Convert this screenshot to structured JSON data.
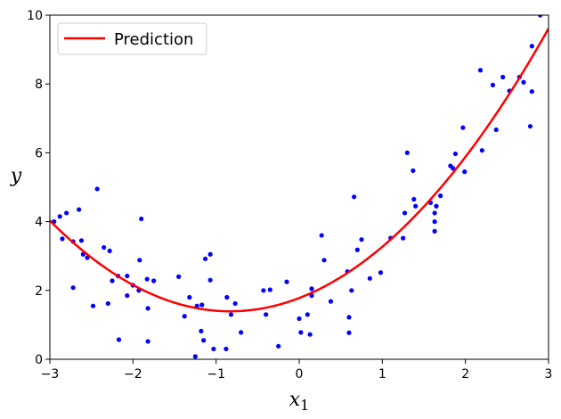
{
  "chart_data": {
    "type": "scatter",
    "title": "",
    "xlabel": "x",
    "xlabel_subscript": "1",
    "ylabel": "y",
    "xlim": [
      -3,
      3
    ],
    "ylim": [
      0,
      10
    ],
    "xticks": [
      -3,
      -2,
      -1,
      0,
      1,
      2,
      3
    ],
    "xtick_labels": [
      "−3",
      "−2",
      "−1",
      "0",
      "1",
      "2",
      "3"
    ],
    "yticks": [
      0,
      2,
      4,
      6,
      8,
      10
    ],
    "ytick_labels": [
      "0",
      "2",
      "4",
      "6",
      "8",
      "10"
    ],
    "grid": false,
    "legend_position": "top-left",
    "series": [
      {
        "kind": "scatter",
        "color": "#0000ff",
        "points": [
          [
            -2.95,
            4.0
          ],
          [
            -2.88,
            4.15
          ],
          [
            -2.85,
            3.5
          ],
          [
            -2.8,
            4.25
          ],
          [
            -2.72,
            2.08
          ],
          [
            -2.72,
            3.42
          ],
          [
            -2.65,
            4.35
          ],
          [
            -2.62,
            3.45
          ],
          [
            -2.6,
            3.05
          ],
          [
            -2.55,
            2.95
          ],
          [
            -2.48,
            1.55
          ],
          [
            -2.43,
            4.95
          ],
          [
            -2.35,
            3.25
          ],
          [
            -2.3,
            1.62
          ],
          [
            -2.28,
            3.15
          ],
          [
            -2.25,
            2.28
          ],
          [
            -2.18,
            2.42
          ],
          [
            -2.17,
            0.57
          ],
          [
            -2.07,
            2.42
          ],
          [
            -2.07,
            1.85
          ],
          [
            -2.0,
            2.15
          ],
          [
            -1.93,
            2.0
          ],
          [
            -1.92,
            2.88
          ],
          [
            -1.9,
            4.08
          ],
          [
            -1.83,
            2.33
          ],
          [
            -1.82,
            1.48
          ],
          [
            -1.82,
            0.52
          ],
          [
            -1.75,
            2.28
          ],
          [
            -1.45,
            2.4
          ],
          [
            -1.38,
            1.25
          ],
          [
            -1.32,
            1.8
          ],
          [
            -1.25,
            0.08
          ],
          [
            -1.23,
            1.55
          ],
          [
            -1.18,
            0.82
          ],
          [
            -1.17,
            1.58
          ],
          [
            -1.15,
            0.55
          ],
          [
            -1.13,
            2.92
          ],
          [
            -1.07,
            3.05
          ],
          [
            -1.07,
            2.3
          ],
          [
            -1.03,
            0.3
          ],
          [
            -0.88,
            0.3
          ],
          [
            -0.87,
            1.8
          ],
          [
            -0.82,
            1.3
          ],
          [
            -0.77,
            1.62
          ],
          [
            -0.7,
            0.78
          ],
          [
            -0.43,
            2.0
          ],
          [
            -0.4,
            1.3
          ],
          [
            -0.35,
            2.02
          ],
          [
            -0.25,
            0.38
          ],
          [
            -0.15,
            2.25
          ],
          [
            0.0,
            1.18
          ],
          [
            0.02,
            0.78
          ],
          [
            0.1,
            1.3
          ],
          [
            0.13,
            0.72
          ],
          [
            0.15,
            2.05
          ],
          [
            0.15,
            1.85
          ],
          [
            0.27,
            3.6
          ],
          [
            0.3,
            2.88
          ],
          [
            0.38,
            1.68
          ],
          [
            0.58,
            2.55
          ],
          [
            0.6,
            1.22
          ],
          [
            0.6,
            0.77
          ],
          [
            0.63,
            2.0
          ],
          [
            0.66,
            4.72
          ],
          [
            0.7,
            3.18
          ],
          [
            0.75,
            3.48
          ],
          [
            0.85,
            2.35
          ],
          [
            0.98,
            2.52
          ],
          [
            1.1,
            3.52
          ],
          [
            1.25,
            3.52
          ],
          [
            1.27,
            4.25
          ],
          [
            1.3,
            6.0
          ],
          [
            1.37,
            5.48
          ],
          [
            1.38,
            4.65
          ],
          [
            1.4,
            4.45
          ],
          [
            1.58,
            4.55
          ],
          [
            1.63,
            4.25
          ],
          [
            1.63,
            4.0
          ],
          [
            1.63,
            3.72
          ],
          [
            1.65,
            4.45
          ],
          [
            1.7,
            4.75
          ],
          [
            1.82,
            5.62
          ],
          [
            1.85,
            5.55
          ],
          [
            1.88,
            5.97
          ],
          [
            1.97,
            6.73
          ],
          [
            1.99,
            5.45
          ],
          [
            2.18,
            8.4
          ],
          [
            2.2,
            6.07
          ],
          [
            2.33,
            7.97
          ],
          [
            2.37,
            6.67
          ],
          [
            2.45,
            8.2
          ],
          [
            2.53,
            7.8
          ],
          [
            2.65,
            8.2
          ],
          [
            2.7,
            8.05
          ],
          [
            2.78,
            6.77
          ],
          [
            2.8,
            9.1
          ],
          [
            2.8,
            7.78
          ],
          [
            2.9,
            10.0
          ]
        ]
      },
      {
        "kind": "line",
        "name": "Prediction",
        "color": "#ff0000",
        "model": "quadratic",
        "coefficients": {
          "a": 0.56,
          "b": 0.93,
          "c": 1.78
        }
      }
    ]
  }
}
